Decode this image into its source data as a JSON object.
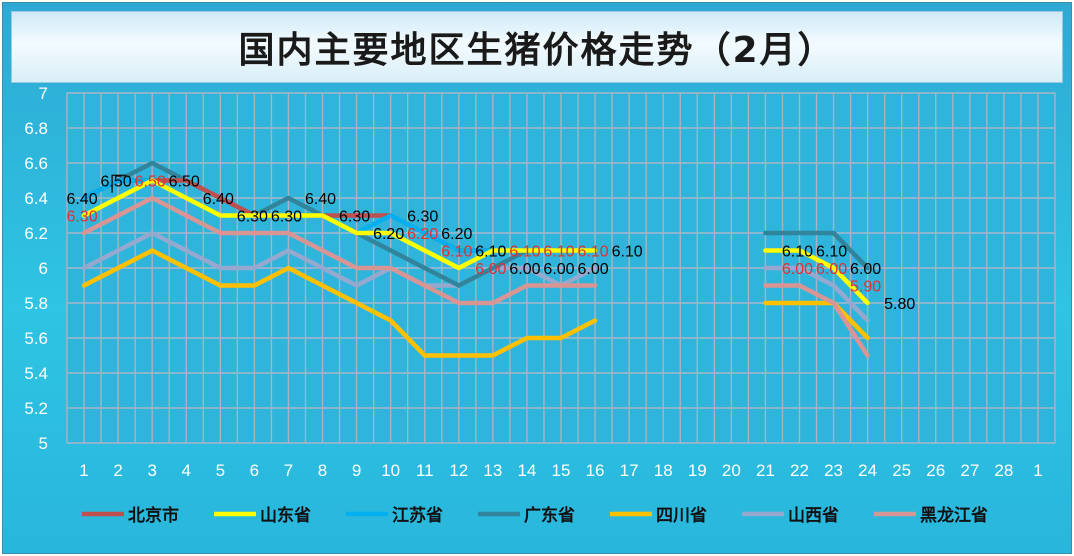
{
  "chart_data": {
    "type": "line",
    "title": "国内主要地区生猪价格走势（2月）",
    "xlabel": "",
    "ylabel": "",
    "categories": [
      "1",
      "2",
      "3",
      "4",
      "5",
      "6",
      "7",
      "8",
      "9",
      "10",
      "11",
      "12",
      "13",
      "14",
      "15",
      "16",
      "17",
      "18",
      "19",
      "20",
      "21",
      "22",
      "23",
      "24",
      "25",
      "26",
      "27",
      "28",
      "1"
    ],
    "ylim": [
      5,
      7
    ],
    "yticks": [
      "5",
      "5.2",
      "5.4",
      "5.6",
      "5.8",
      "6",
      "6.2",
      "6.4",
      "6.6",
      "6.8",
      "7"
    ],
    "legend_position": "bottom",
    "series": [
      {
        "name": "北京市",
        "color": "#c0504d",
        "values": [
          6.4,
          6.5,
          6.5,
          6.5,
          6.4,
          6.3,
          6.3,
          6.3,
          6.3,
          6.3,
          6.2,
          6.1,
          6.1,
          6.1,
          6.1,
          6.1,
          null,
          null,
          null,
          null,
          6.1,
          6.1,
          6.0,
          5.8,
          null,
          null,
          null,
          null,
          null
        ]
      },
      {
        "name": "山东省",
        "color": "#ffff00",
        "values": [
          6.3,
          6.4,
          6.5,
          6.4,
          6.3,
          6.3,
          6.3,
          6.3,
          6.2,
          6.2,
          6.1,
          6.0,
          6.1,
          6.1,
          6.1,
          6.1,
          null,
          null,
          null,
          null,
          6.1,
          6.1,
          6.0,
          5.8,
          null,
          null,
          null,
          null,
          null
        ]
      },
      {
        "name": "江苏省",
        "color": "#00b0f0",
        "values": [
          6.4,
          6.5,
          6.5,
          6.4,
          6.3,
          6.3,
          6.3,
          6.3,
          6.2,
          6.3,
          6.2,
          6.1,
          6.1,
          6.1,
          6.1,
          6.1,
          null,
          null,
          null,
          null,
          6.1,
          6.1,
          6.0,
          5.8,
          null,
          null,
          null,
          null,
          null
        ]
      },
      {
        "name": "广东省",
        "color": "#31849b",
        "values": [
          6.4,
          6.5,
          6.6,
          6.5,
          6.4,
          6.3,
          6.4,
          6.3,
          6.2,
          6.1,
          6.0,
          5.9,
          6.0,
          6.1,
          6.1,
          6.1,
          null,
          null,
          null,
          null,
          6.2,
          6.2,
          6.2,
          6.0,
          null,
          null,
          null,
          null,
          null
        ]
      },
      {
        "name": "四川省",
        "color": "#ffc000",
        "values": [
          5.9,
          6.0,
          6.1,
          6.0,
          5.9,
          5.9,
          6.0,
          5.9,
          5.8,
          5.7,
          5.5,
          5.5,
          5.5,
          5.6,
          5.6,
          5.7,
          null,
          null,
          null,
          null,
          5.8,
          5.8,
          5.8,
          5.6,
          null,
          null,
          null,
          null,
          null
        ]
      },
      {
        "name": "山西省",
        "color": "#95a9cf",
        "values": [
          6.0,
          6.1,
          6.2,
          6.1,
          6.0,
          6.0,
          6.1,
          6.0,
          5.9,
          6.0,
          5.9,
          5.9,
          6.0,
          6.0,
          5.9,
          6.0,
          null,
          null,
          null,
          null,
          6.0,
          6.0,
          5.9,
          5.7,
          null,
          null,
          null,
          null,
          null
        ]
      },
      {
        "name": "黑龙江省",
        "color": "#d99594",
        "values": [
          6.2,
          6.3,
          6.4,
          6.3,
          6.2,
          6.2,
          6.2,
          6.1,
          6.0,
          6.0,
          5.9,
          5.8,
          5.8,
          5.9,
          5.9,
          5.9,
          null,
          null,
          null,
          null,
          5.9,
          5.9,
          5.8,
          5.5,
          null,
          null,
          null,
          null,
          null
        ]
      }
    ],
    "data_labels": [
      {
        "text": "6.40",
        "cat": 1,
        "value": 6.4,
        "color": "#000000"
      },
      {
        "text": "6.30",
        "cat": 1,
        "value": 6.3,
        "color": "#e03030"
      },
      {
        "text": "6.50",
        "cat": 2,
        "value": 6.5,
        "color": "#000000"
      },
      {
        "text": "6.50",
        "cat": 3,
        "value": 6.5,
        "color": "#e03030"
      },
      {
        "text": "6.50",
        "cat": 4,
        "value": 6.5,
        "color": "#000000"
      },
      {
        "text": "6.40",
        "cat": 5,
        "value": 6.4,
        "color": "#000000"
      },
      {
        "text": "6.30",
        "cat": 6,
        "value": 6.3,
        "color": "#000000"
      },
      {
        "text": "6.30",
        "cat": 7,
        "value": 6.3,
        "color": "#000000"
      },
      {
        "text": "6.40",
        "cat": 8,
        "value": 6.4,
        "color": "#000000"
      },
      {
        "text": "6.30",
        "cat": 9,
        "value": 6.3,
        "color": "#000000"
      },
      {
        "text": "6.20",
        "cat": 10,
        "value": 6.2,
        "color": "#000000"
      },
      {
        "text": "6.30",
        "cat": 11,
        "value": 6.3,
        "color": "#000000"
      },
      {
        "text": "6.20",
        "cat": 11,
        "value": 6.2,
        "color": "#e03030"
      },
      {
        "text": "6.20",
        "cat": 12,
        "value": 6.2,
        "color": "#000000"
      },
      {
        "text": "6.10",
        "cat": 12,
        "value": 6.1,
        "color": "#e03030"
      },
      {
        "text": "6.10",
        "cat": 13,
        "value": 6.1,
        "color": "#000000"
      },
      {
        "text": "6.00",
        "cat": 13,
        "value": 6.0,
        "color": "#e03030"
      },
      {
        "text": "6.10",
        "cat": 14,
        "value": 6.1,
        "color": "#e03030"
      },
      {
        "text": "6.00",
        "cat": 14,
        "value": 6.0,
        "color": "#000000"
      },
      {
        "text": "6.10",
        "cat": 15,
        "value": 6.1,
        "color": "#e03030"
      },
      {
        "text": "6.00",
        "cat": 15,
        "value": 6.0,
        "color": "#000000"
      },
      {
        "text": "6.10",
        "cat": 16,
        "value": 6.1,
        "color": "#e03030"
      },
      {
        "text": "6.00",
        "cat": 16,
        "value": 6.0,
        "color": "#000000"
      },
      {
        "text": "6.10",
        "cat": 17,
        "value": 6.1,
        "color": "#000000"
      },
      {
        "text": "6.10",
        "cat": 22,
        "value": 6.1,
        "color": "#000000"
      },
      {
        "text": "6.00",
        "cat": 22,
        "value": 6.0,
        "color": "#e03030"
      },
      {
        "text": "6.10",
        "cat": 23,
        "value": 6.1,
        "color": "#000000"
      },
      {
        "text": "6.00",
        "cat": 23,
        "value": 6.0,
        "color": "#e03030"
      },
      {
        "text": "6.00",
        "cat": 24,
        "value": 6.0,
        "color": "#000000"
      },
      {
        "text": "5.90",
        "cat": 24,
        "value": 5.9,
        "color": "#e03030"
      },
      {
        "text": "5.80",
        "cat": 25,
        "value": 5.8,
        "color": "#000000"
      }
    ]
  }
}
